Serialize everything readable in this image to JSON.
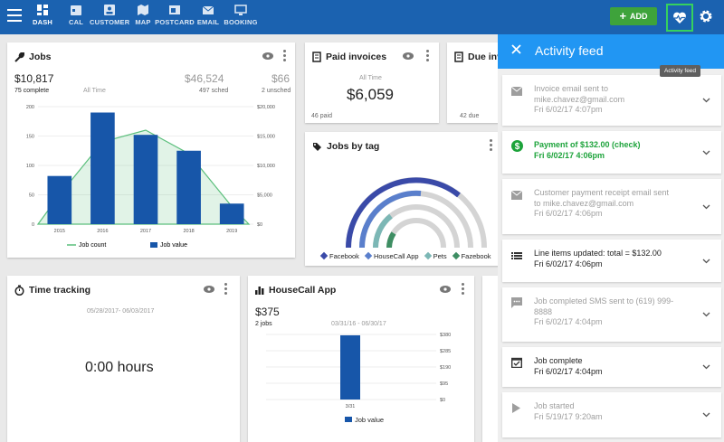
{
  "nav": {
    "items": [
      {
        "label": "DASH",
        "icon": "dashboard-icon",
        "active": true
      },
      {
        "label": "CAL",
        "icon": "calendar-icon"
      },
      {
        "label": "CUSTOMER",
        "icon": "customer-icon"
      },
      {
        "label": "MAP",
        "icon": "map-icon"
      },
      {
        "label": "POSTCARD",
        "icon": "postcard-icon"
      },
      {
        "label": "EMAIL",
        "icon": "email-icon"
      },
      {
        "label": "BOOKING",
        "icon": "booking-icon"
      }
    ],
    "add_label": "ADD",
    "tooltip": "Activity feed"
  },
  "jobs": {
    "title": "Jobs",
    "amount1": "$10,817",
    "sub1": "75 complete",
    "period": "All Time",
    "amount2": "$46,524",
    "sub2": "497 sched",
    "amount3": "$66",
    "sub3": "2 unsched"
  },
  "chart_data": {
    "type": "bar",
    "categories": [
      "2015",
      "2016",
      "2017",
      "2018",
      "2019"
    ],
    "series": [
      {
        "name": "Job count",
        "type": "area",
        "values": [
          50,
          140,
          160,
          120,
          30
        ]
      },
      {
        "name": "Job value",
        "type": "bar",
        "values": [
          82,
          190,
          152,
          125,
          35
        ]
      }
    ],
    "ylim": [
      0,
      200
    ],
    "yticks": [
      0,
      50,
      100,
      150,
      200
    ],
    "y2ticks": [
      "$0",
      "$5,000",
      "$10,000",
      "$15,000",
      "$20,000"
    ],
    "colors": {
      "bar": "#1756a9",
      "area": "#5bbf7c"
    }
  },
  "paid": {
    "title": "Paid invoices",
    "period": "All Time",
    "amount": "$6,059",
    "count": "46 paid"
  },
  "due": {
    "title": "Due invoi",
    "count": "42 due"
  },
  "tags": {
    "title": "Jobs by tag",
    "legend": [
      "Facebook",
      "HouseCall App",
      "Pets",
      "Fazebook"
    ],
    "colors": [
      "#3a4aa8",
      "#5a7fcc",
      "#7cb7b5",
      "#3e8e63"
    ]
  },
  "time": {
    "title": "Time tracking",
    "range": "05/28/2017- 06/03/2017",
    "hours": "0:00 hours"
  },
  "hca": {
    "title": "HouseCall App",
    "amount": "$375",
    "jobs": "2 jobs",
    "range": "03/31/16 - 06/30/17",
    "yticks": [
      "$380",
      "$285",
      "$190",
      "$95",
      "$0"
    ],
    "xlabel": "3/31",
    "legend": "Job value",
    "value": 375
  },
  "feed": {
    "title": "Activity feed",
    "items": [
      {
        "icon": "email-icon",
        "line1": "Invoice email sent to",
        "line2": "mike.chavez@gmail.com",
        "date": "Fri 6/02/17 4:07pm",
        "style": "grey"
      },
      {
        "icon": "dollar-icon",
        "line1": "Payment of $132.00 (check)",
        "line2": "",
        "date": "Fri 6/02/17 4:06pm",
        "style": "green"
      },
      {
        "icon": "email-icon",
        "line1": "Customer payment receipt email sent",
        "line2": "to mike.chavez@gmail.com",
        "date": "Fri 6/02/17 4:06pm",
        "style": "grey"
      },
      {
        "icon": "list-icon",
        "line1": "Line items updated: total = $132.00",
        "line2": "",
        "date": "Fri 6/02/17 4:06pm",
        "style": "dark"
      },
      {
        "icon": "sms-icon",
        "line1": "Job completed SMS sent to (619) 999-",
        "line2": "8888",
        "date": "Fri 6/02/17 4:04pm",
        "style": "grey"
      },
      {
        "icon": "calendar-check-icon",
        "line1": "Job complete",
        "line2": "",
        "date": "Fri 6/02/17 4:04pm",
        "style": "dark"
      },
      {
        "icon": "play-icon",
        "line1": "Job started",
        "line2": "",
        "date": "Fri 5/19/17 9:20am",
        "style": "grey"
      }
    ]
  }
}
